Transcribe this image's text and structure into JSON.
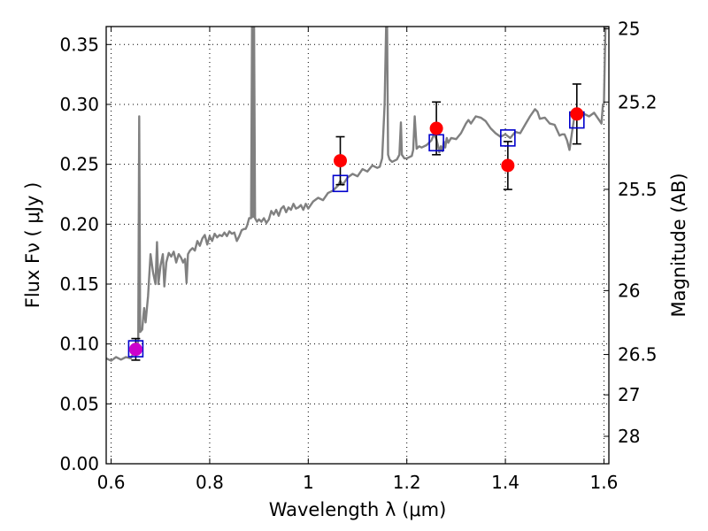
{
  "chart_data": {
    "type": "scatter",
    "title": "",
    "xlabel": "Wavelength  λ (μm)",
    "ylabel": "Flux  Fν  ( μJy )",
    "ylabel_right": "Magnitude (AB)",
    "xlim": [
      0.59,
      1.61
    ],
    "ylim": [
      0.0,
      0.365
    ],
    "grid": true,
    "legend": "none",
    "x_ticks": [
      {
        "value": 0.6,
        "label": "0.6"
      },
      {
        "value": 0.8,
        "label": "0.8"
      },
      {
        "value": 1.0,
        "label": "1"
      },
      {
        "value": 1.2,
        "label": "1.2"
      },
      {
        "value": 1.4,
        "label": "1.4"
      },
      {
        "value": 1.6,
        "label": "1.6"
      }
    ],
    "y_ticks": [
      {
        "value": 0.0,
        "label": "0.00"
      },
      {
        "value": 0.05,
        "label": "0.05"
      },
      {
        "value": 0.1,
        "label": "0.10"
      },
      {
        "value": 0.15,
        "label": "0.15"
      },
      {
        "value": 0.2,
        "label": "0.20"
      },
      {
        "value": 0.25,
        "label": "0.25"
      },
      {
        "value": 0.3,
        "label": "0.30"
      },
      {
        "value": 0.35,
        "label": "0.35"
      }
    ],
    "mag_ticks": [
      {
        "value": 25,
        "label": "25"
      },
      {
        "value": 25.2,
        "label": "25.2"
      },
      {
        "value": 25.5,
        "label": "25.5"
      },
      {
        "value": 26,
        "label": "26"
      },
      {
        "value": 26.5,
        "label": "26.5"
      },
      {
        "value": 27,
        "label": "27"
      },
      {
        "value": 28,
        "label": "28"
      }
    ],
    "spectrum": {
      "color": "#808080",
      "points": [
        [
          0.59,
          0.088
        ],
        [
          0.6,
          0.086
        ],
        [
          0.61,
          0.089
        ],
        [
          0.62,
          0.087
        ],
        [
          0.63,
          0.089
        ],
        [
          0.64,
          0.088
        ],
        [
          0.645,
          0.092
        ],
        [
          0.652,
          0.092
        ],
        [
          0.655,
          0.104
        ],
        [
          0.657,
          0.29
        ],
        [
          0.659,
          0.11
        ],
        [
          0.663,
          0.112
        ],
        [
          0.665,
          0.122
        ],
        [
          0.667,
          0.13
        ],
        [
          0.67,
          0.118
        ],
        [
          0.675,
          0.14
        ],
        [
          0.68,
          0.175
        ],
        [
          0.685,
          0.16
        ],
        [
          0.69,
          0.15
        ],
        [
          0.693,
          0.185
        ],
        [
          0.696,
          0.15
        ],
        [
          0.7,
          0.165
        ],
        [
          0.705,
          0.175
        ],
        [
          0.708,
          0.148
        ],
        [
          0.712,
          0.168
        ],
        [
          0.717,
          0.176
        ],
        [
          0.722,
          0.173
        ],
        [
          0.727,
          0.177
        ],
        [
          0.732,
          0.168
        ],
        [
          0.737,
          0.175
        ],
        [
          0.742,
          0.172
        ],
        [
          0.746,
          0.168
        ],
        [
          0.75,
          0.171
        ],
        [
          0.753,
          0.151
        ],
        [
          0.756,
          0.175
        ],
        [
          0.76,
          0.178
        ],
        [
          0.765,
          0.18
        ],
        [
          0.77,
          0.178
        ],
        [
          0.775,
          0.186
        ],
        [
          0.78,
          0.182
        ],
        [
          0.785,
          0.188
        ],
        [
          0.79,
          0.191
        ],
        [
          0.795,
          0.183
        ],
        [
          0.8,
          0.19
        ],
        [
          0.805,
          0.186
        ],
        [
          0.81,
          0.192
        ],
        [
          0.815,
          0.189
        ],
        [
          0.82,
          0.191
        ],
        [
          0.825,
          0.19
        ],
        [
          0.83,
          0.193
        ],
        [
          0.835,
          0.19
        ],
        [
          0.84,
          0.194
        ],
        [
          0.845,
          0.192
        ],
        [
          0.85,
          0.193
        ],
        [
          0.855,
          0.186
        ],
        [
          0.86,
          0.19
        ],
        [
          0.865,
          0.195
        ],
        [
          0.87,
          0.196
        ],
        [
          0.873,
          0.196
        ],
        [
          0.876,
          0.199
        ],
        [
          0.88,
          0.205
        ],
        [
          0.884,
          0.205
        ],
        [
          0.886,
          0.365
        ],
        [
          0.888,
          0.206
        ],
        [
          0.89,
          0.365
        ],
        [
          0.892,
          0.205
        ],
        [
          0.896,
          0.202
        ],
        [
          0.9,
          0.204
        ],
        [
          0.905,
          0.202
        ],
        [
          0.91,
          0.205
        ],
        [
          0.915,
          0.201
        ],
        [
          0.92,
          0.204
        ],
        [
          0.925,
          0.211
        ],
        [
          0.93,
          0.208
        ],
        [
          0.935,
          0.212
        ],
        [
          0.94,
          0.207
        ],
        [
          0.945,
          0.213
        ],
        [
          0.95,
          0.215
        ],
        [
          0.955,
          0.21
        ],
        [
          0.96,
          0.214
        ],
        [
          0.965,
          0.212
        ],
        [
          0.97,
          0.217
        ],
        [
          0.975,
          0.213
        ],
        [
          0.98,
          0.214
        ],
        [
          0.985,
          0.216
        ],
        [
          0.99,
          0.212
        ],
        [
          0.995,
          0.217
        ],
        [
          1.0,
          0.213
        ],
        [
          1.01,
          0.219
        ],
        [
          1.02,
          0.222
        ],
        [
          1.03,
          0.22
        ],
        [
          1.04,
          0.226
        ],
        [
          1.05,
          0.228
        ],
        [
          1.06,
          0.232
        ],
        [
          1.065,
          0.236
        ],
        [
          1.07,
          0.233
        ],
        [
          1.08,
          0.239
        ],
        [
          1.09,
          0.242
        ],
        [
          1.1,
          0.24
        ],
        [
          1.11,
          0.246
        ],
        [
          1.12,
          0.244
        ],
        [
          1.13,
          0.249
        ],
        [
          1.14,
          0.247
        ],
        [
          1.145,
          0.248
        ],
        [
          1.15,
          0.255
        ],
        [
          1.155,
          0.3
        ],
        [
          1.158,
          0.365
        ],
        [
          1.16,
          0.365
        ],
        [
          1.162,
          0.258
        ],
        [
          1.165,
          0.254
        ],
        [
          1.17,
          0.252
        ],
        [
          1.18,
          0.254
        ],
        [
          1.185,
          0.258
        ],
        [
          1.188,
          0.285
        ],
        [
          1.19,
          0.258
        ],
        [
          1.195,
          0.255
        ],
        [
          1.2,
          0.255
        ],
        [
          1.21,
          0.257
        ],
        [
          1.213,
          0.262
        ],
        [
          1.216,
          0.29
        ],
        [
          1.22,
          0.263
        ],
        [
          1.225,
          0.265
        ],
        [
          1.23,
          0.264
        ],
        [
          1.24,
          0.266
        ],
        [
          1.245,
          0.268
        ],
        [
          1.25,
          0.27
        ],
        [
          1.255,
          0.275
        ],
        [
          1.26,
          0.271
        ],
        [
          1.263,
          0.266
        ],
        [
          1.266,
          0.26
        ],
        [
          1.269,
          0.265
        ],
        [
          1.272,
          0.261
        ],
        [
          1.275,
          0.269
        ],
        [
          1.278,
          0.264
        ],
        [
          1.281,
          0.272
        ],
        [
          1.284,
          0.268
        ],
        [
          1.29,
          0.272
        ],
        [
          1.3,
          0.271
        ],
        [
          1.31,
          0.276
        ],
        [
          1.32,
          0.284
        ],
        [
          1.325,
          0.287
        ],
        [
          1.33,
          0.284
        ],
        [
          1.34,
          0.29
        ],
        [
          1.35,
          0.289
        ],
        [
          1.36,
          0.286
        ],
        [
          1.37,
          0.28
        ],
        [
          1.38,
          0.276
        ],
        [
          1.39,
          0.273
        ],
        [
          1.4,
          0.275
        ],
        [
          1.41,
          0.272
        ],
        [
          1.42,
          0.277
        ],
        [
          1.43,
          0.276
        ],
        [
          1.44,
          0.283
        ],
        [
          1.45,
          0.29
        ],
        [
          1.46,
          0.296
        ],
        [
          1.465,
          0.294
        ],
        [
          1.47,
          0.288
        ],
        [
          1.48,
          0.289
        ],
        [
          1.49,
          0.284
        ],
        [
          1.5,
          0.283
        ],
        [
          1.51,
          0.274
        ],
        [
          1.515,
          0.275
        ],
        [
          1.52,
          0.275
        ],
        [
          1.525,
          0.27
        ],
        [
          1.53,
          0.262
        ],
        [
          1.535,
          0.276
        ],
        [
          1.54,
          0.29
        ],
        [
          1.55,
          0.295
        ],
        [
          1.56,
          0.292
        ],
        [
          1.57,
          0.29
        ],
        [
          1.58,
          0.293
        ],
        [
          1.59,
          0.287
        ],
        [
          1.595,
          0.284
        ],
        [
          1.598,
          0.3
        ],
        [
          1.6,
          0.3
        ],
        [
          1.603,
          0.365
        ],
        [
          1.606,
          0.365
        ],
        [
          1.61,
          0.365
        ]
      ]
    },
    "series": [
      {
        "marker": "circle",
        "color": "#ff0000",
        "points": [
          {
            "x": 0.65,
            "y": 0.0955,
            "err": 0.009
          },
          {
            "x": 1.065,
            "y": 0.253,
            "err": 0.02
          },
          {
            "x": 1.26,
            "y": 0.28,
            "err": 0.022
          },
          {
            "x": 1.405,
            "y": 0.249,
            "err": 0.02
          },
          {
            "x": 1.545,
            "y": 0.292,
            "err": 0.025
          }
        ]
      },
      {
        "marker": "open-square",
        "color": "#0000cc",
        "points": [
          {
            "x": 0.65,
            "y": 0.096
          },
          {
            "x": 1.065,
            "y": 0.234
          },
          {
            "x": 1.26,
            "y": 0.268
          },
          {
            "x": 1.405,
            "y": 0.272
          },
          {
            "x": 1.545,
            "y": 0.287
          }
        ]
      }
    ],
    "colors": {
      "overlap_point": "#cc00cc",
      "errorbar": "#000000"
    }
  }
}
